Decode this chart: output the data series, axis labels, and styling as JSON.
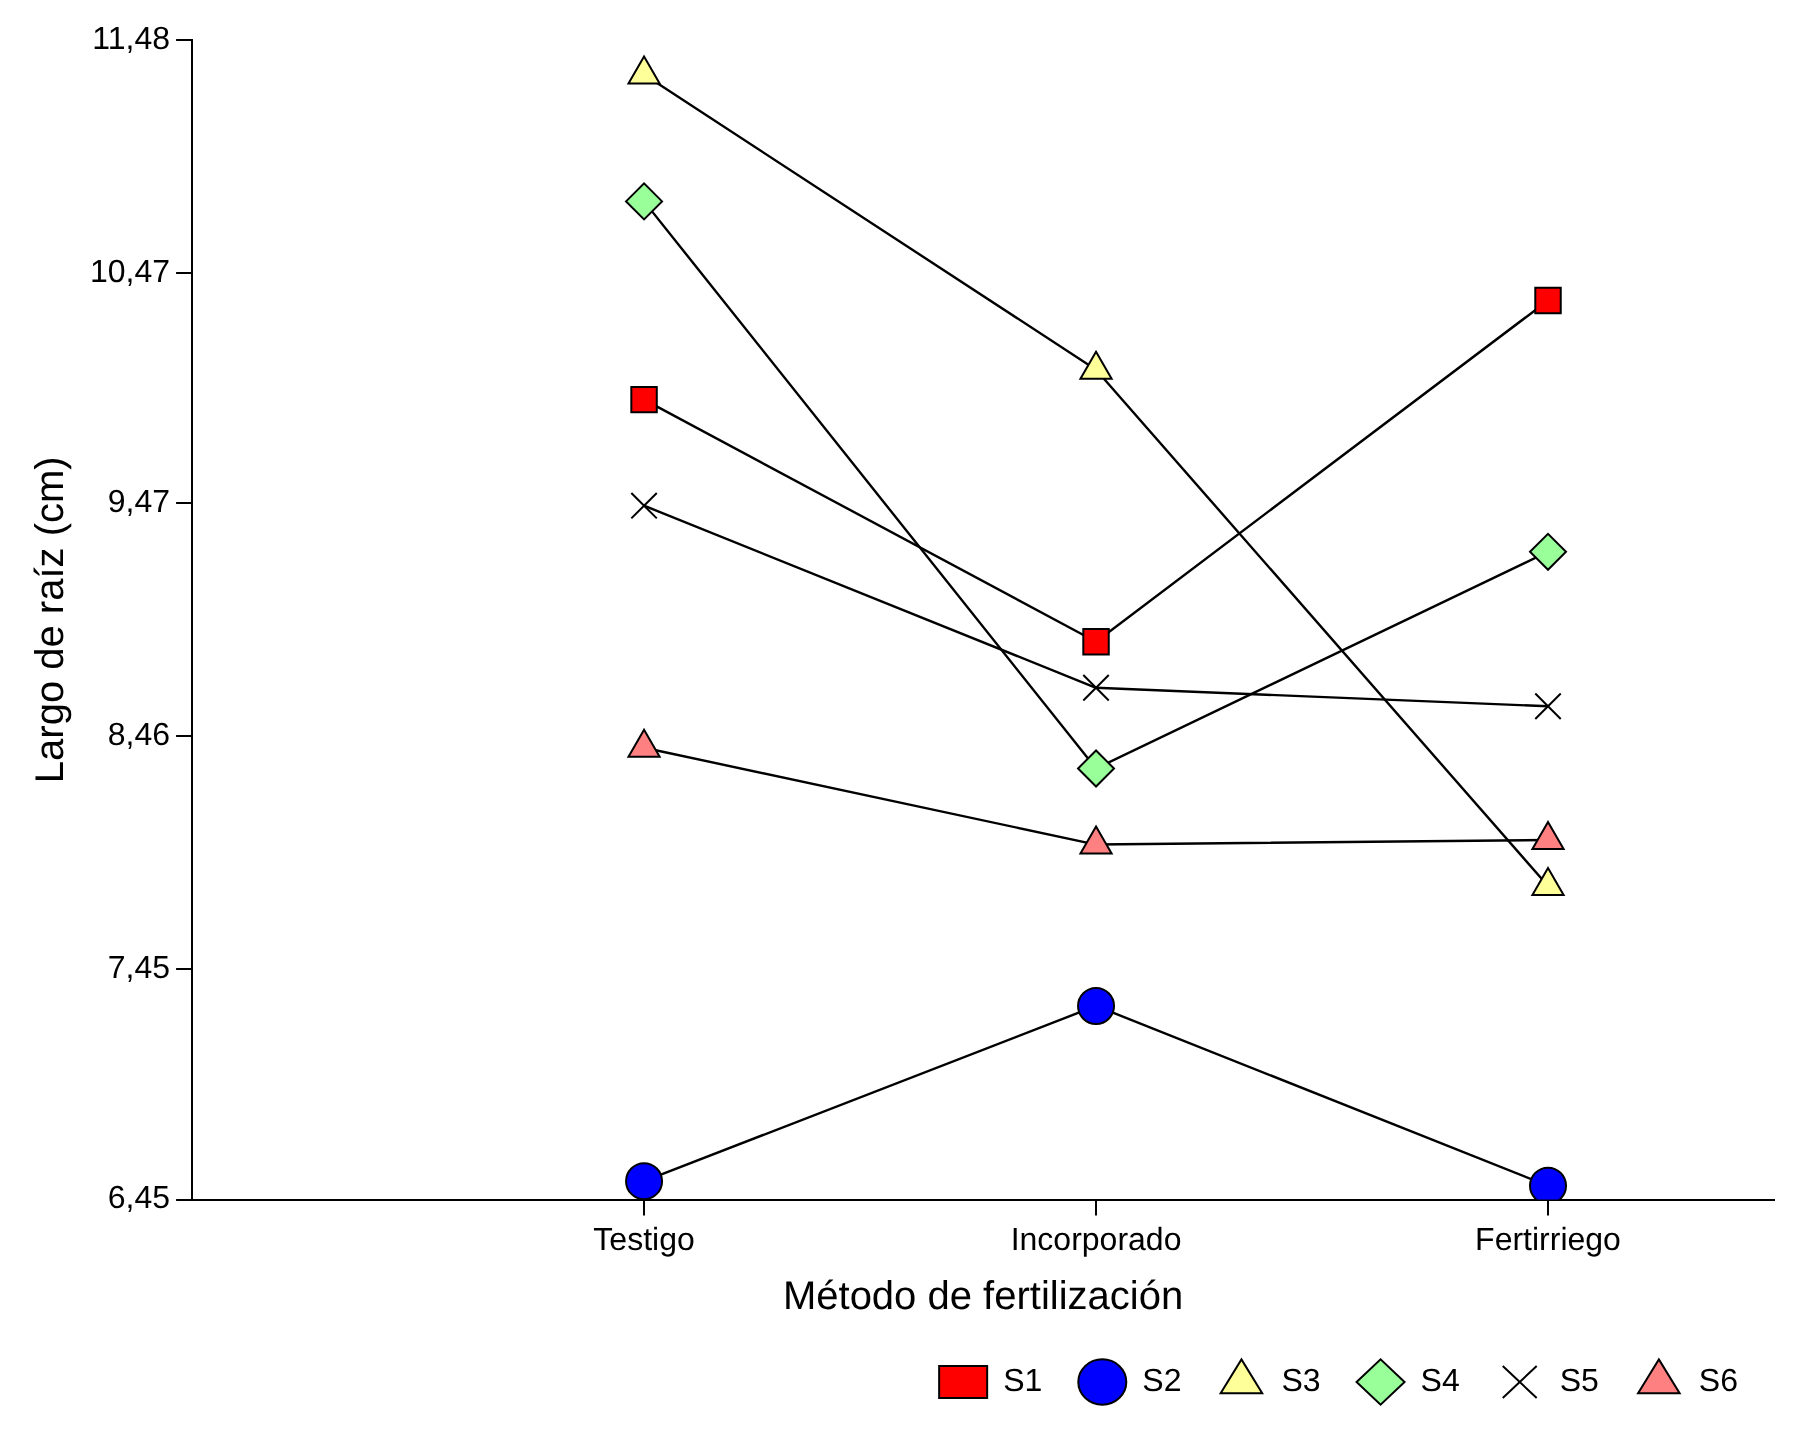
{
  "chart_data": {
    "type": "line",
    "xlabel": "Método de fertilización",
    "ylabel": "Largo de raíz (cm)",
    "categories": [
      "Testigo",
      "Incorporado",
      "Fertirriego"
    ],
    "ylim": [
      6.45,
      11.48
    ],
    "yticks": [
      {
        "value": 6.45,
        "label": "6,45"
      },
      {
        "value": 7.45,
        "label": "7,45"
      },
      {
        "value": 8.46,
        "label": "8,46"
      },
      {
        "value": 9.47,
        "label": "9,47"
      },
      {
        "value": 10.47,
        "label": "10,47"
      },
      {
        "value": 11.48,
        "label": "11,48"
      }
    ],
    "grid": false,
    "legend": "bottom",
    "line_style": "solid",
    "series": [
      {
        "name": "S1",
        "color": "#ff0000",
        "marker": "square",
        "values": [
          9.92,
          8.87,
          10.35
        ]
      },
      {
        "name": "S2",
        "color": "#0000ff",
        "marker": "circle",
        "values": [
          6.53,
          7.29,
          6.51
        ]
      },
      {
        "name": "S3",
        "color": "#ffff99",
        "marker": "triangle",
        "values": [
          11.33,
          10.05,
          7.81
        ]
      },
      {
        "name": "S4",
        "color": "#99ff99",
        "marker": "diamond",
        "values": [
          10.78,
          8.32,
          9.26
        ]
      },
      {
        "name": "S5",
        "color": "#000000",
        "marker": "cross",
        "values": [
          9.46,
          8.67,
          8.59
        ]
      },
      {
        "name": "S6",
        "color": "#ff8080",
        "marker": "triangle",
        "values": [
          8.41,
          7.99,
          8.01
        ]
      }
    ]
  }
}
